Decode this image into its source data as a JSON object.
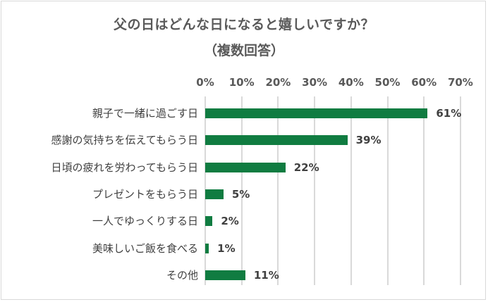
{
  "chart_data": {
    "type": "bar",
    "orientation": "horizontal",
    "title": "父の日はどんな日になると嬉しいですか？",
    "subtitle": "（複数回答）",
    "xlabel": "",
    "ylabel": "",
    "xlim": [
      0,
      70
    ],
    "x_ticks": [
      "0%",
      "10%",
      "20%",
      "30%",
      "40%",
      "50%",
      "60%",
      "70%"
    ],
    "grid": true,
    "legend": null,
    "bar_color": "#107c41",
    "categories": [
      "親子で一緒に過ごす日",
      "感謝の気持ちを伝えてもらう日",
      "日頃の疲れを労わってもらう日",
      "プレゼントをもらう日",
      "一人でゆっくりする日",
      "美味しいご飯を食べる",
      "その他"
    ],
    "values": [
      61,
      39,
      22,
      5,
      2,
      1,
      11
    ],
    "value_labels": [
      "61%",
      "39%",
      "22%",
      "5%",
      "2%",
      "1%",
      "11%"
    ]
  }
}
